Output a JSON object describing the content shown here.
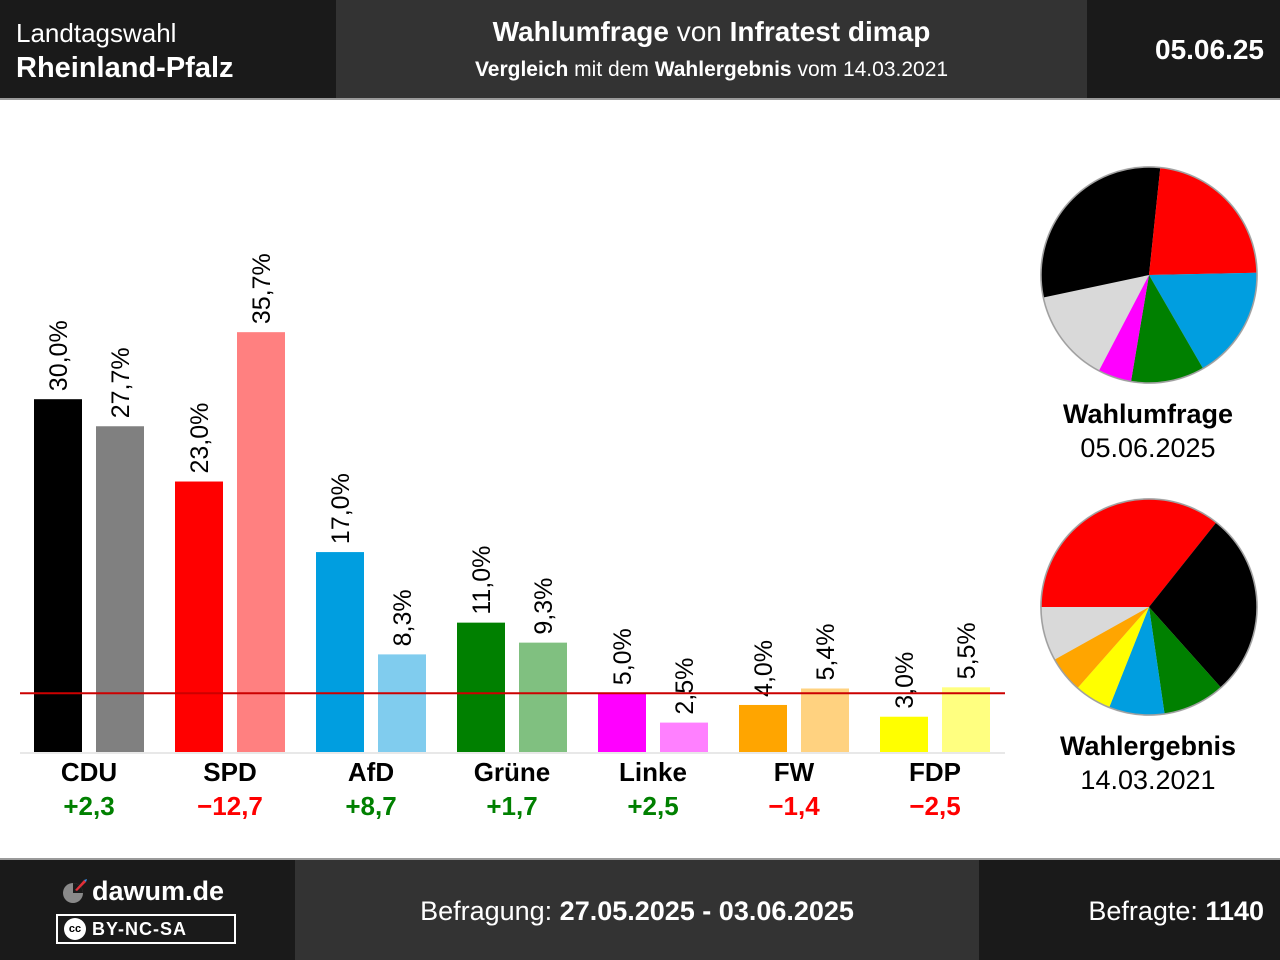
{
  "header": {
    "region_line1": "Landtagswahl",
    "region_line2": "Rheinland-Pfalz",
    "title_bold1": "Wahlumfrage",
    "title_normal": " von ",
    "title_bold2": "Infratest dimap",
    "subtitle_bold1": "Vergleich",
    "subtitle_normal1": " mit dem ",
    "subtitle_bold2": "Wahlergebnis",
    "subtitle_normal2": " vom 14.03.2021",
    "date_short": "05.06.25"
  },
  "chart_data": {
    "type": "bar",
    "categories": [
      "CDU",
      "SPD",
      "AfD",
      "Grüne",
      "Linke",
      "FW",
      "FDP"
    ],
    "series": [
      {
        "values": [
          30.0,
          23.0,
          17.0,
          11.0,
          5.0,
          4.0,
          3.0
        ]
      },
      {
        "values": [
          27.7,
          35.7,
          8.3,
          9.3,
          2.5,
          5.4,
          5.5
        ]
      }
    ],
    "value_labels_poll": [
      "30,0%",
      "23,0%",
      "17,0%",
      "11,0%",
      "5,0%",
      "4,0%",
      "3,0%"
    ],
    "value_labels_result": [
      "27,7%",
      "35,7%",
      "8,3%",
      "9,3%",
      "2,5%",
      "5,4%",
      "5,5%"
    ],
    "differences": [
      "+2,3",
      "−12,7",
      "+8,7",
      "+1,7",
      "+2,5",
      "−1,4",
      "−2,5"
    ],
    "threshold": 5,
    "ylim": [
      0,
      36
    ]
  },
  "colors": {
    "poll": [
      "#000000",
      "#ff0000",
      "#009ee0",
      "#008000",
      "#ff00ff",
      "#ffa500",
      "#ffff00"
    ],
    "result": [
      "#808080",
      "#ff8080",
      "#80ccee",
      "#80c080",
      "#ff80ff",
      "#ffd280",
      "#ffff80"
    ],
    "diff_positive": "#008000",
    "diff_negative": "#ff0000",
    "threshold_line": "#cc0000"
  },
  "pies": [
    {
      "label": "Wahlumfrage",
      "date": "05.06.2025",
      "slices": [
        {
          "party": "CDU",
          "value": 30.0,
          "color": "#000000"
        },
        {
          "party": "SPD",
          "value": 23.0,
          "color": "#ff0000"
        },
        {
          "party": "AfD",
          "value": 17.0,
          "color": "#009ee0"
        },
        {
          "party": "Grüne",
          "value": 11.0,
          "color": "#008000"
        },
        {
          "party": "Linke",
          "value": 5.0,
          "color": "#ff00ff"
        }
      ]
    },
    {
      "label": "Wahlergebnis",
      "date": "14.03.2021",
      "slices": [
        {
          "party": "SPD",
          "value": 35.7,
          "color": "#ff0000"
        },
        {
          "party": "CDU",
          "value": 27.7,
          "color": "#000000"
        },
        {
          "party": "Grüne",
          "value": 9.3,
          "color": "#008000"
        },
        {
          "party": "AfD",
          "value": 8.3,
          "color": "#009ee0"
        },
        {
          "party": "FDP",
          "value": 5.5,
          "color": "#ffff00"
        },
        {
          "party": "FW",
          "value": 5.4,
          "color": "#ffa500"
        }
      ]
    }
  ],
  "footer": {
    "brand": "dawum.de",
    "license": "BY-NC-SA",
    "license_icon": "cc",
    "survey_label": "Befragung: ",
    "survey_period": "27.05.2025 - 03.06.2025",
    "respondents_label": "Befragte: ",
    "respondents_value": "1140"
  }
}
